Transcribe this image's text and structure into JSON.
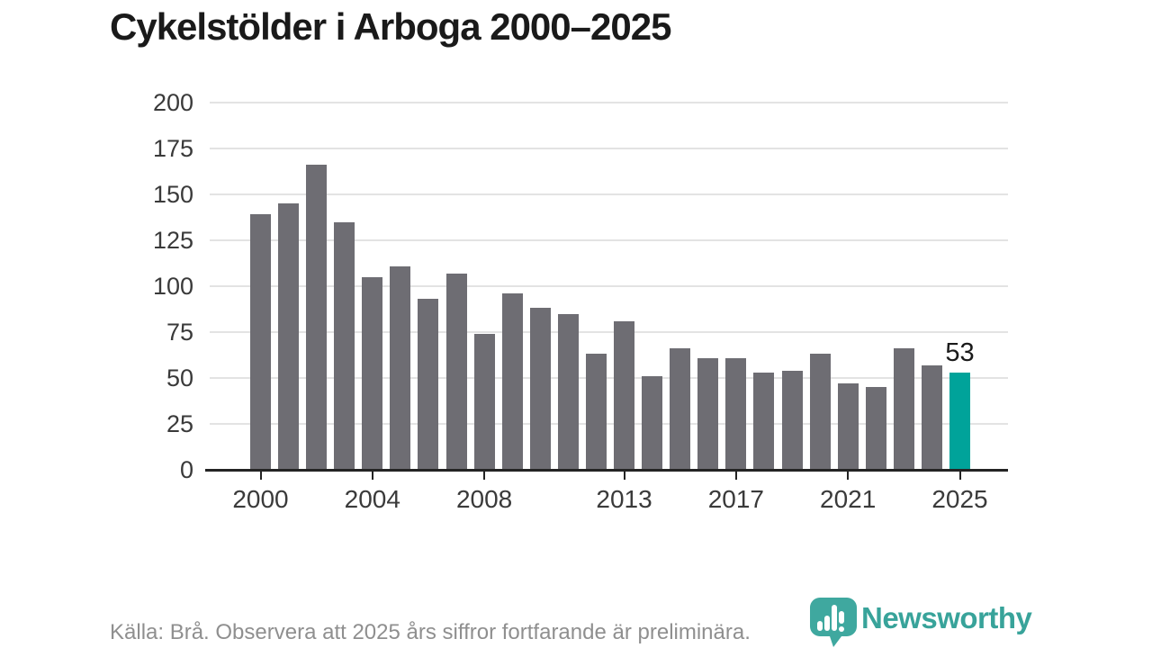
{
  "title": "Cykelstölder i Arboga 2000–2025",
  "chart_data": {
    "type": "bar",
    "title": "Cykelstölder i Arboga 2000–2025",
    "categories": [
      2000,
      2001,
      2002,
      2003,
      2004,
      2005,
      2006,
      2007,
      2008,
      2009,
      2010,
      2011,
      2012,
      2013,
      2014,
      2015,
      2016,
      2017,
      2018,
      2019,
      2020,
      2021,
      2022,
      2023,
      2024,
      2025
    ],
    "values": [
      139,
      145,
      166,
      135,
      105,
      111,
      93,
      107,
      74,
      96,
      88,
      85,
      63,
      81,
      51,
      66,
      61,
      61,
      53,
      54,
      63,
      47,
      45,
      66,
      57,
      53
    ],
    "ylim": [
      0,
      200
    ],
    "ytick_step": 25,
    "yticks": [
      0,
      25,
      50,
      75,
      100,
      125,
      150,
      175,
      200
    ],
    "xticks": [
      2000,
      2004,
      2008,
      2013,
      2017,
      2021,
      2025
    ],
    "grid": true,
    "legend": "none",
    "bar_color": "#6e6d73",
    "highlight": {
      "category": 2025,
      "value": 53,
      "label": "53",
      "color": "#00a39a"
    }
  },
  "footer": {
    "source": "Källa: Brå. Observera att 2025 års siffror fortfarande är preliminära."
  },
  "brand": {
    "wordmark": "Newsworthy",
    "badge_icon": "bar-chart-pin-icon",
    "badge_color": "#3fa89f",
    "wordmark_color": "#38a39a"
  }
}
